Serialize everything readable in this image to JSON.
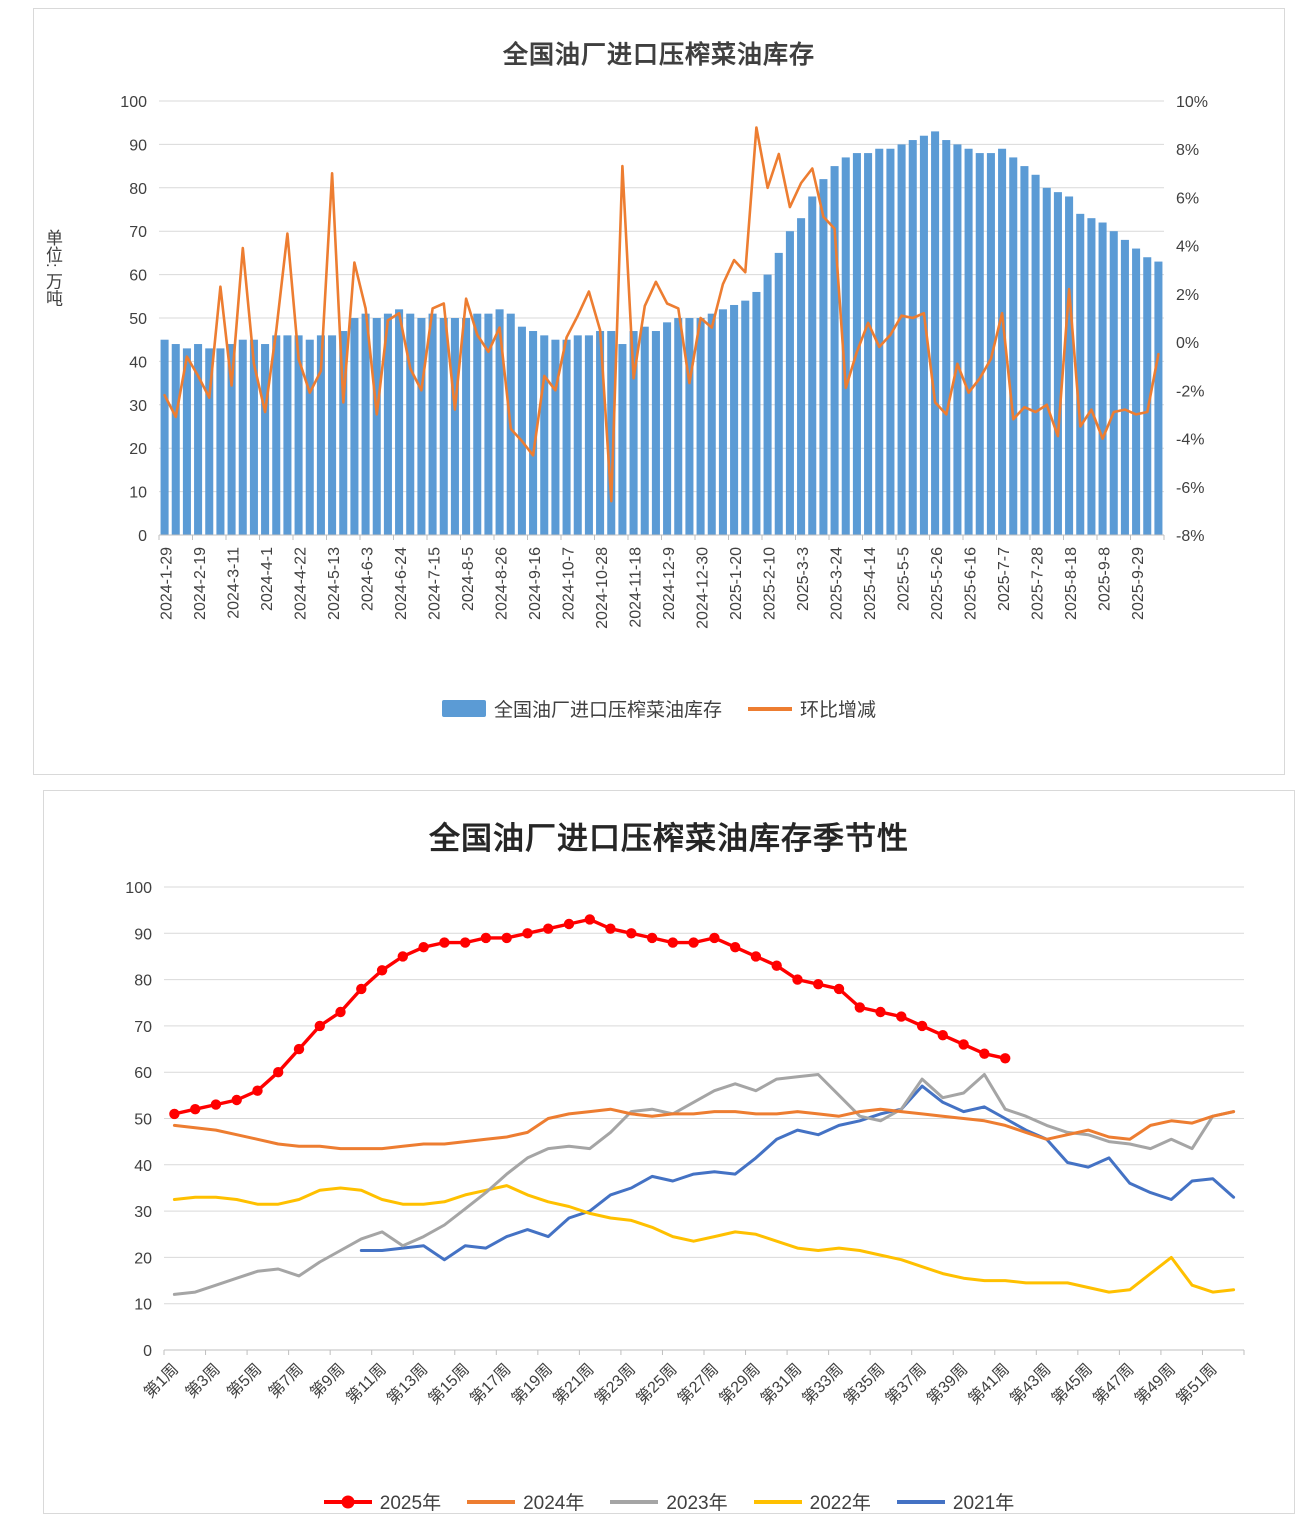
{
  "colors": {
    "bar_blue": "#5B9BD5",
    "line_orange": "#ED7D31",
    "red_2025": "#FF0000",
    "orange_2024": "#ED7D31",
    "gray_2023": "#A5A5A5",
    "yellow_2022": "#FFC000",
    "blue_2021": "#4472C4",
    "grid": "#D9D9D9",
    "axis": "#BFBFBF"
  },
  "chart_data": [
    {
      "type": "combo-bar-line",
      "title": "全国油厂进口压榨菜油库存",
      "y_axis_title": "单位: 万吨",
      "left_axis": {
        "min": 0,
        "max": 100,
        "step": 10
      },
      "right_axis": {
        "min": -8,
        "max": 10,
        "step": 2,
        "suffix": "%"
      },
      "grid": true,
      "legend_position": "bottom",
      "x_label_every": 3,
      "x_labels": [
        "2024-1-29",
        "2024-2-19",
        "2024-3-11",
        "2024-4-1",
        "2024-4-22",
        "2024-5-13",
        "2024-6-3",
        "2024-6-24",
        "2024-7-15",
        "2024-8-5",
        "2024-8-26",
        "2024-9-16",
        "2024-10-7",
        "2024-10-28",
        "2024-11-18",
        "2024-12-9",
        "2024-12-30",
        "2025-1-20",
        "2025-2-10",
        "2025-3-3",
        "2025-3-24",
        "2025-4-14",
        "2025-5-5",
        "2025-5-26",
        "2025-6-16",
        "2025-7-7",
        "2025-7-28",
        "2025-8-18",
        "2025-9-8",
        "2025-9-29"
      ],
      "bar_series": {
        "name": "全国油厂进口压榨菜油库存",
        "color": "#5B9BD5",
        "unit": "万吨",
        "values": [
          45,
          44,
          43,
          44,
          43,
          43,
          44,
          45,
          45,
          44,
          46,
          46,
          46,
          45,
          46,
          46,
          47,
          50,
          51,
          50,
          51,
          52,
          51,
          50,
          51,
          50,
          50,
          50,
          51,
          51,
          52,
          51,
          48,
          47,
          46,
          45,
          45,
          46,
          46,
          47,
          47,
          44,
          47,
          48,
          47,
          49,
          50,
          50,
          50,
          51,
          52,
          53,
          54,
          56,
          60,
          65,
          70,
          73,
          78,
          82,
          85,
          87,
          88,
          88,
          89,
          89,
          90,
          91,
          92,
          93,
          91,
          90,
          89,
          88,
          88,
          89,
          87,
          85,
          83,
          80,
          79,
          78,
          74,
          73,
          72,
          70,
          68,
          66,
          64,
          63
        ]
      },
      "line_series": {
        "name": "环比增减",
        "color": "#ED7D31",
        "unit": "%",
        "values": [
          -2.2,
          -3.1,
          -0.6,
          -1.4,
          -2.3,
          2.3,
          -1.8,
          3.9,
          -0.9,
          -2.9,
          0.5,
          4.5,
          -0.7,
          -2.1,
          -1.2,
          7.0,
          -2.5,
          3.3,
          1.4,
          -3.0,
          0.9,
          1.2,
          -1.1,
          -2.0,
          1.4,
          1.6,
          -2.8,
          1.8,
          0.3,
          -0.4,
          0.6,
          -3.6,
          -4.1,
          -4.7,
          -1.4,
          -2.0,
          0.2,
          1.1,
          2.1,
          0.5,
          -6.6,
          7.3,
          -1.5,
          1.5,
          2.5,
          1.6,
          1.4,
          -1.7,
          1.0,
          0.6,
          2.4,
          3.4,
          2.9,
          8.9,
          6.4,
          7.8,
          5.6,
          6.6,
          7.2,
          5.2,
          4.7,
          -1.9,
          -0.4,
          0.8,
          -0.2,
          0.3,
          1.1,
          1.0,
          1.2,
          -2.5,
          -3.0,
          -0.9,
          -2.1,
          -1.5,
          -0.7,
          1.2,
          -3.2,
          -2.7,
          -2.9,
          -2.6,
          -3.9,
          2.2,
          -3.5,
          -2.8,
          -4.0,
          -2.9,
          -2.8,
          -3.0,
          -2.9,
          -0.5
        ]
      }
    },
    {
      "type": "line",
      "title": "全国油厂进口压榨菜油库存季节性",
      "y_axis": {
        "min": 0,
        "max": 100,
        "step": 10
      },
      "weeks": 52,
      "grid": true,
      "legend_position": "bottom",
      "x_label_every": 2,
      "x_labels": [
        "第1周",
        "第3周",
        "第5周",
        "第7周",
        "第9周",
        "第11周",
        "第13周",
        "第15周",
        "第17周",
        "第19周",
        "第21周",
        "第23周",
        "第25周",
        "第27周",
        "第29周",
        "第31周",
        "第33周",
        "第35周",
        "第37周",
        "第39周",
        "第41周",
        "第43周",
        "第45周",
        "第47周",
        "第49周",
        "第51周"
      ],
      "series": [
        {
          "name": "2025年",
          "color": "#FF0000",
          "marker": true,
          "values": [
            51,
            52,
            53,
            54,
            56,
            60,
            65,
            70,
            73,
            78,
            82,
            85,
            87,
            88,
            88,
            89,
            89,
            90,
            91,
            92,
            93,
            91,
            90,
            89,
            88,
            88,
            89,
            87,
            85,
            83,
            80,
            79,
            78,
            74,
            73,
            72,
            70,
            68,
            66,
            64,
            63
          ]
        },
        {
          "name": "2024年",
          "color": "#ED7D31",
          "marker": false,
          "values": [
            48.5,
            48,
            47.5,
            46.5,
            45.5,
            44.5,
            44,
            44,
            43.5,
            43.5,
            43.5,
            44,
            44.5,
            44.5,
            45,
            45.5,
            46,
            47,
            50,
            51,
            51.5,
            52,
            51,
            50.5,
            51,
            51,
            51.5,
            51.5,
            51,
            51,
            51.5,
            51,
            50.5,
            51.5,
            52,
            51.5,
            51,
            50.5,
            50,
            49.5,
            48.5,
            47,
            45.5,
            46.5,
            47.5,
            46,
            45.5,
            48.5,
            49.5,
            49,
            50.5,
            51.5
          ]
        },
        {
          "name": "2023年",
          "color": "#A5A5A5",
          "marker": false,
          "values": [
            12,
            12.5,
            14,
            15.5,
            17,
            17.5,
            16,
            19,
            21.5,
            24,
            25.5,
            22.5,
            24.5,
            27,
            30.5,
            34,
            38,
            41.5,
            43.5,
            44,
            43.5,
            47,
            51.5,
            52,
            51,
            53.5,
            56,
            57.5,
            56,
            58.5,
            59,
            59.5,
            55,
            50.5,
            49.5,
            52,
            58.5,
            54.5,
            55.5,
            59.5,
            52,
            50.5,
            48.5,
            47,
            46.5,
            45,
            44.5,
            43.5,
            45.5,
            43.5,
            50.5,
            51.5
          ]
        },
        {
          "name": "2022年",
          "color": "#FFC000",
          "marker": false,
          "values": [
            32.5,
            33,
            33,
            32.5,
            31.5,
            31.5,
            32.5,
            34.5,
            35,
            34.5,
            32.5,
            31.5,
            31.5,
            32,
            33.5,
            34.5,
            35.5,
            33.5,
            32,
            31,
            29.5,
            28.5,
            28,
            26.5,
            24.5,
            23.5,
            24.5,
            25.5,
            25,
            23.5,
            22,
            21.5,
            22,
            21.5,
            20.5,
            19.5,
            18,
            16.5,
            15.5,
            15,
            15,
            14.5,
            14.5,
            14.5,
            13.5,
            12.5,
            13,
            16.5,
            20,
            14,
            12.5,
            13
          ]
        },
        {
          "name": "2021年",
          "color": "#4472C4",
          "marker": false,
          "values": [
            null,
            null,
            null,
            null,
            null,
            null,
            null,
            null,
            null,
            21.5,
            21.5,
            22,
            22.5,
            19.5,
            22.5,
            22,
            24.5,
            26,
            24.5,
            28.5,
            30,
            33.5,
            35,
            37.5,
            36.5,
            38,
            38.5,
            38,
            41.5,
            45.5,
            47.5,
            46.5,
            48.5,
            49.5,
            51,
            52,
            57,
            53.5,
            51.5,
            52.5,
            50,
            47.5,
            45.5,
            40.5,
            39.5,
            41.5,
            36,
            34,
            32.5,
            36.5,
            37,
            33
          ]
        }
      ]
    }
  ]
}
